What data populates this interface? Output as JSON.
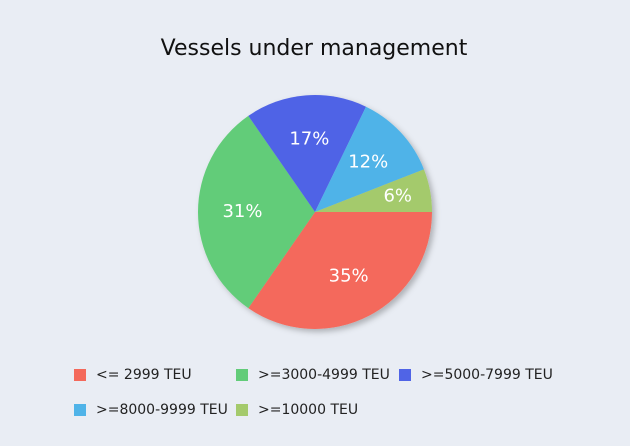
{
  "chart_data": {
    "type": "pie",
    "title": "Vessels under management",
    "categories": [
      "<= 2999 TEU",
      ">=3000-4999 TEU",
      ">=5000-7999 TEU",
      ">=8000-9999 TEU",
      ">=10000 TEU"
    ],
    "values": [
      35,
      31,
      17,
      12,
      6
    ],
    "value_labels": [
      "35%",
      "31%",
      "17%",
      "12%",
      "6%"
    ],
    "colors": [
      "#f4695b",
      "#62cc79",
      "#5064e6",
      "#4fb3e8",
      "#a4ca6c"
    ],
    "legend": "bottom"
  }
}
